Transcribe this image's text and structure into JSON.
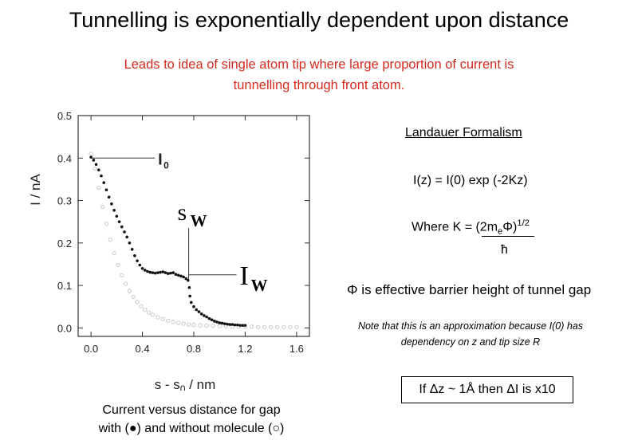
{
  "slide": {
    "title": "Tunnelling is exponentially dependent upon distance",
    "subtitle_line1": "Leads to idea of single atom tip where large proportion of current is",
    "subtitle_line2": "tunnelling through front atom.",
    "caption_line1": "Current versus distance for gap",
    "caption_line2": "with (●) and without molecule (○)",
    "landauer_heading": "Landauer Formalism",
    "equation": "I(z) = I(0) exp (-2Kz)",
    "where_k_prefix": "Where K = (2m",
    "where_k_sub": "e",
    "where_k_phi": "Φ)",
    "where_k_sup": "1/2",
    "hbar": "ħ",
    "phi_description": "Φ is effective barrier height of tunnel gap",
    "note": "Note that this is an approximation because I(0) has dependency on z and tip size R",
    "boxed_statement": "If Δz ~ 1Å then ΔI is x10"
  },
  "colors": {
    "subtitle": "#d42a20",
    "with_molecule": "#111111",
    "without_molecule": "#bbbbbb"
  },
  "chart_data": {
    "type": "scatter",
    "title": "",
    "xlabel_main": "s - s",
    "xlabel_sub": "0",
    "xlabel_unit": " / nm",
    "ylabel": "I / nA",
    "xlim": [
      -0.1,
      1.7
    ],
    "ylim": [
      -0.02,
      0.5
    ],
    "xticks": [
      0.0,
      0.4,
      0.8,
      1.2,
      1.6
    ],
    "xtick_labels": [
      "0.0",
      "0.4",
      "0.8",
      "1.2",
      "1.6"
    ],
    "yticks": [
      0.0,
      0.1,
      0.2,
      0.3,
      0.4,
      0.5
    ],
    "ytick_labels": [
      "0.0",
      "0.1",
      "0.2",
      "0.3",
      "0.4",
      "0.5"
    ],
    "annotations": {
      "i0_label": "I",
      "i0_sub": "0",
      "sw_label": "s",
      "sw_sub": "W",
      "iw_label": "I",
      "iw_sub": "W",
      "i0_point": [
        0.0,
        0.4
      ],
      "sw_point": [
        0.76,
        0.23
      ],
      "iw_point": [
        0.76,
        0.125
      ]
    },
    "series": [
      {
        "name": "with molecule",
        "marker": "filled",
        "x": [
          0.0,
          0.02,
          0.04,
          0.06,
          0.08,
          0.1,
          0.12,
          0.14,
          0.16,
          0.18,
          0.2,
          0.22,
          0.24,
          0.26,
          0.28,
          0.3,
          0.32,
          0.34,
          0.36,
          0.38,
          0.4,
          0.42,
          0.44,
          0.46,
          0.48,
          0.5,
          0.52,
          0.54,
          0.56,
          0.58,
          0.6,
          0.62,
          0.64,
          0.66,
          0.68,
          0.7,
          0.72,
          0.74,
          0.755,
          0.765,
          0.77,
          0.78,
          0.8,
          0.82,
          0.84,
          0.86,
          0.88,
          0.9,
          0.92,
          0.94,
          0.96,
          0.98,
          1.0,
          1.02,
          1.04,
          1.06,
          1.08,
          1.1,
          1.12,
          1.14,
          1.16,
          1.18,
          1.2
        ],
        "y": [
          0.402,
          0.395,
          0.385,
          0.372,
          0.358,
          0.342,
          0.325,
          0.308,
          0.292,
          0.277,
          0.263,
          0.25,
          0.238,
          0.226,
          0.214,
          0.2,
          0.185,
          0.17,
          0.158,
          0.148,
          0.14,
          0.136,
          0.133,
          0.131,
          0.13,
          0.129,
          0.13,
          0.131,
          0.132,
          0.13,
          0.128,
          0.129,
          0.13,
          0.126,
          0.124,
          0.122,
          0.12,
          0.116,
          0.112,
          0.095,
          0.075,
          0.06,
          0.05,
          0.043,
          0.038,
          0.033,
          0.029,
          0.026,
          0.022,
          0.019,
          0.016,
          0.014,
          0.012,
          0.011,
          0.01,
          0.009,
          0.008,
          0.008,
          0.007,
          0.007,
          0.006,
          0.006,
          0.006
        ]
      },
      {
        "name": "without molecule",
        "marker": "open",
        "x": [
          0.0,
          0.03,
          0.06,
          0.09,
          0.12,
          0.15,
          0.18,
          0.21,
          0.24,
          0.27,
          0.3,
          0.33,
          0.36,
          0.39,
          0.42,
          0.45,
          0.48,
          0.52,
          0.56,
          0.6,
          0.64,
          0.68,
          0.72,
          0.76,
          0.8,
          0.85,
          0.9,
          0.95,
          1.0,
          1.05,
          1.1,
          1.15,
          1.2,
          1.25,
          1.3,
          1.35,
          1.4,
          1.45,
          1.5,
          1.55,
          1.6
        ],
        "y": [
          0.41,
          0.375,
          0.33,
          0.285,
          0.245,
          0.208,
          0.176,
          0.148,
          0.124,
          0.104,
          0.087,
          0.073,
          0.061,
          0.051,
          0.043,
          0.036,
          0.031,
          0.025,
          0.021,
          0.017,
          0.014,
          0.012,
          0.01,
          0.008,
          0.007,
          0.006,
          0.005,
          0.005,
          0.004,
          0.004,
          0.003,
          0.003,
          0.003,
          0.003,
          0.002,
          0.002,
          0.002,
          0.002,
          0.002,
          0.002,
          0.002
        ]
      }
    ]
  }
}
